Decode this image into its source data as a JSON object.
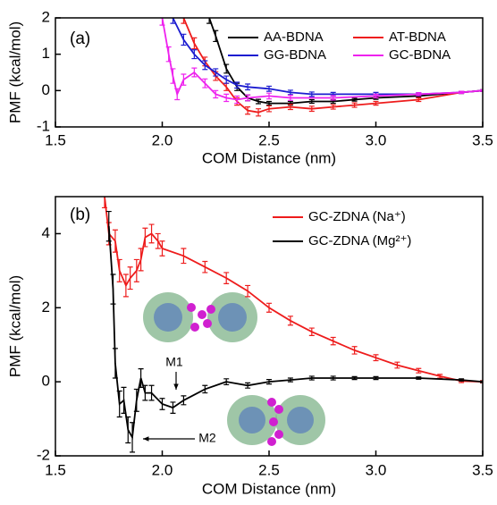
{
  "chart_data": [
    {
      "type": "line",
      "panel_label": "(a)",
      "x_label": "COM Distance (nm)",
      "y_label": "PMF (kcal/mol)",
      "xlim": [
        1.5,
        3.5
      ],
      "ylim": [
        -1,
        2
      ],
      "xticks": [
        1.5,
        {
          "value": 2.0,
          "label": "2.0"
        },
        2.5,
        {
          "value": 3.0,
          "label": "3.0"
        },
        3.5
      ],
      "yticks": [
        -1,
        0,
        1,
        2
      ],
      "series": [
        {
          "name": "AA-BDNA",
          "color": "#000000",
          "x": [
            2.22,
            2.25,
            2.3,
            2.35,
            2.4,
            2.45,
            2.5,
            2.6,
            2.7,
            2.8,
            2.9,
            3.0,
            3.2,
            3.4,
            3.5
          ],
          "values": [
            2,
            1.5,
            0.6,
            0.1,
            -0.2,
            -0.3,
            -0.35,
            -0.35,
            -0.3,
            -0.3,
            -0.25,
            -0.2,
            -0.15,
            -0.05,
            0
          ],
          "errors": [
            0.15,
            0.15,
            0.12,
            0.1,
            0.08,
            0.06,
            0.05,
            0.05,
            0.05,
            0.05,
            0.04,
            0.04,
            0.03,
            0.03,
            0.02
          ]
        },
        {
          "name": "AT-BDNA",
          "color": "#ee1c1c",
          "x": [
            2.1,
            2.15,
            2.2,
            2.25,
            2.3,
            2.35,
            2.4,
            2.45,
            2.5,
            2.6,
            2.7,
            2.8,
            2.9,
            3.0,
            3.2,
            3.4,
            3.5
          ],
          "values": [
            2,
            1.3,
            0.8,
            0.4,
            0.1,
            -0.3,
            -0.55,
            -0.6,
            -0.5,
            -0.45,
            -0.5,
            -0.45,
            -0.4,
            -0.35,
            -0.25,
            -0.05,
            0
          ],
          "errors": [
            0.15,
            0.15,
            0.12,
            0.12,
            0.1,
            0.1,
            0.1,
            0.1,
            0.08,
            0.07,
            0.07,
            0.06,
            0.06,
            0.05,
            0.05,
            0.03,
            0.02
          ]
        },
        {
          "name": "GG-BDNA",
          "color": "#1c1cd0",
          "x": [
            2.05,
            2.1,
            2.15,
            2.2,
            2.25,
            2.3,
            2.35,
            2.4,
            2.5,
            2.6,
            2.7,
            2.8,
            3.0,
            3.2,
            3.4,
            3.5
          ],
          "values": [
            2,
            1.4,
            1.0,
            0.7,
            0.5,
            0.3,
            0.15,
            0.1,
            0.05,
            -0.05,
            -0.1,
            -0.1,
            -0.1,
            -0.1,
            -0.05,
            0
          ],
          "errors": [
            0.15,
            0.15,
            0.12,
            0.12,
            0.1,
            0.1,
            0.08,
            0.08,
            0.07,
            0.06,
            0.06,
            0.05,
            0.05,
            0.04,
            0.03,
            0.02
          ]
        },
        {
          "name": "GC-BDNA",
          "color": "#ee22ee",
          "x": [
            2.0,
            2.03,
            2.05,
            2.07,
            2.1,
            2.15,
            2.2,
            2.25,
            2.3,
            2.35,
            2.4,
            2.5,
            2.6,
            2.8,
            3.0,
            3.2,
            3.4,
            3.5
          ],
          "values": [
            2,
            1.0,
            0.4,
            -0.1,
            0.3,
            0.5,
            0.2,
            -0.1,
            -0.2,
            -0.25,
            -0.2,
            -0.15,
            -0.2,
            -0.2,
            -0.15,
            -0.1,
            -0.05,
            0
          ],
          "errors": [
            0.2,
            0.2,
            0.2,
            0.15,
            0.15,
            0.12,
            0.12,
            0.1,
            0.1,
            0.1,
            0.08,
            0.08,
            0.07,
            0.06,
            0.05,
            0.04,
            0.03,
            0.02
          ]
        }
      ]
    },
    {
      "type": "line",
      "panel_label": "(b)",
      "x_label": "COM Distance (nm)",
      "y_label": "PMF (kcal/mol)",
      "annotations": [
        "M1",
        "M2"
      ],
      "xlim": [
        1.5,
        3.5
      ],
      "ylim": [
        -2,
        5
      ],
      "xticks": [
        1.5,
        {
          "value": 2.0,
          "label": "2.0"
        },
        2.5,
        {
          "value": 3.0,
          "label": "3.0"
        },
        3.5
      ],
      "yticks": [
        -2,
        0,
        2,
        4
      ],
      "series": [
        {
          "name": "GC-ZDNA (Na⁺)",
          "color": "#ee1c1c",
          "x": [
            1.73,
            1.75,
            1.78,
            1.8,
            1.83,
            1.85,
            1.88,
            1.9,
            1.92,
            1.95,
            1.98,
            2.0,
            2.1,
            2.2,
            2.3,
            2.4,
            2.5,
            2.6,
            2.7,
            2.8,
            2.9,
            3.0,
            3.1,
            3.2,
            3.3,
            3.4,
            3.5
          ],
          "values": [
            5,
            4,
            3.8,
            3.0,
            2.6,
            2.8,
            3.0,
            3.3,
            3.9,
            4.0,
            3.8,
            3.6,
            3.4,
            3.1,
            2.8,
            2.45,
            2.0,
            1.65,
            1.35,
            1.1,
            0.85,
            0.65,
            0.45,
            0.3,
            0.15,
            0.02,
            0
          ],
          "errors": [
            0.3,
            0.3,
            0.3,
            0.3,
            0.3,
            0.3,
            0.3,
            0.3,
            0.25,
            0.25,
            0.2,
            0.2,
            0.2,
            0.15,
            0.15,
            0.15,
            0.12,
            0.12,
            0.1,
            0.1,
            0.1,
            0.08,
            0.08,
            0.06,
            0.05,
            0.04,
            0.03
          ]
        },
        {
          "name": "GC-ZDNA (Mg²⁺)",
          "color": "#000000",
          "x": [
            1.75,
            1.77,
            1.78,
            1.8,
            1.82,
            1.84,
            1.86,
            1.88,
            1.9,
            1.92,
            1.95,
            2.0,
            2.05,
            2.1,
            2.2,
            2.3,
            2.4,
            2.5,
            2.6,
            2.7,
            2.8,
            2.9,
            3.0,
            3.2,
            3.4,
            3.5
          ],
          "values": [
            4.2,
            2.5,
            0.5,
            -0.6,
            -0.5,
            -1.3,
            -1.5,
            -0.5,
            0.1,
            -0.3,
            -0.3,
            -0.6,
            -0.7,
            -0.5,
            -0.2,
            0,
            -0.1,
            0,
            0.05,
            0.1,
            0.1,
            0.1,
            0.1,
            0.1,
            0.05,
            0
          ],
          "errors": [
            0.4,
            0.4,
            0.4,
            0.35,
            0.35,
            0.35,
            0.4,
            0.3,
            0.25,
            0.2,
            0.2,
            0.15,
            0.15,
            0.12,
            0.1,
            0.08,
            0.07,
            0.06,
            0.05,
            0.05,
            0.05,
            0.04,
            0.04,
            0.03,
            0.03,
            0.02
          ]
        }
      ]
    }
  ]
}
